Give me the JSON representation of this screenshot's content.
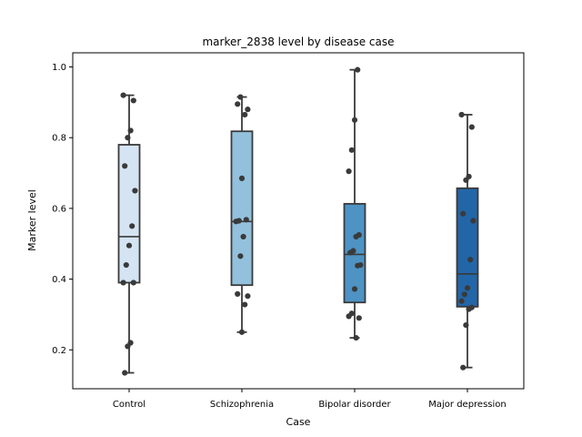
{
  "chart_data": {
    "type": "box",
    "title": "marker_2838 level by disease case",
    "xlabel": "Case",
    "ylabel": "Marker level",
    "ylim": [
      0.09,
      1.04
    ],
    "yticks": [
      "0.2",
      "0.4",
      "0.6",
      "0.8",
      "1.0"
    ],
    "grid": false,
    "legend": "none",
    "categories": [
      "Control",
      "Schizophrenia",
      "Bipolar disorder",
      "Major depression"
    ],
    "colors": [
      "#d4e4f3",
      "#93c1dd",
      "#4d93c3",
      "#2266a8"
    ],
    "boxes": [
      {
        "min": 0.135,
        "q1": 0.39,
        "median": 0.52,
        "q3": 0.78,
        "max": 0.92
      },
      {
        "min": 0.25,
        "q1": 0.383,
        "median": 0.563,
        "q3": 0.818,
        "max": 0.915
      },
      {
        "min": 0.234,
        "q1": 0.334,
        "median": 0.47,
        "q3": 0.613,
        "max": 0.992
      },
      {
        "min": 0.15,
        "q1": 0.322,
        "median": 0.415,
        "q3": 0.657,
        "max": 0.865
      }
    ],
    "points": [
      [
        0.92,
        0.905,
        0.82,
        0.8,
        0.72,
        0.65,
        0.55,
        0.495,
        0.44,
        0.39,
        0.39,
        0.22,
        0.21,
        0.135
      ],
      [
        0.915,
        0.895,
        0.88,
        0.865,
        0.685,
        0.565,
        0.563,
        0.568,
        0.52,
        0.465,
        0.358,
        0.352,
        0.328,
        0.25
      ],
      [
        0.992,
        0.85,
        0.765,
        0.705,
        0.525,
        0.52,
        0.48,
        0.475,
        0.44,
        0.438,
        0.372,
        0.303,
        0.295,
        0.29,
        0.234
      ],
      [
        0.865,
        0.83,
        0.69,
        0.68,
        0.585,
        0.565,
        0.455,
        0.375,
        0.357,
        0.338,
        0.32,
        0.315,
        0.27,
        0.15
      ]
    ]
  }
}
